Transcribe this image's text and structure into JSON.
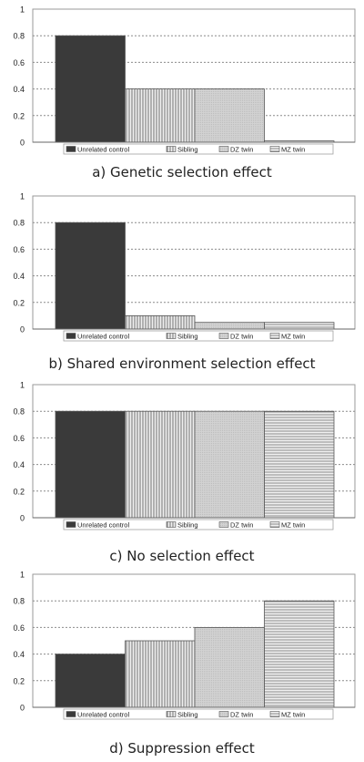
{
  "legend_labels": [
    "Unrelated control",
    "Sibling",
    "DZ twin",
    "MZ twin"
  ],
  "patterns": [
    "dark",
    "vlines",
    "light",
    "hlines"
  ],
  "chart_data": [
    {
      "type": "bar",
      "categories": [
        "Unrelated control",
        "Sibling",
        "DZ twin",
        "MZ twin"
      ],
      "values": [
        0.8,
        0.4,
        0.4,
        0.01
      ],
      "title": "a) Genetic selection effect",
      "ylim": [
        0,
        1
      ],
      "yticks": [
        "0",
        "0.2",
        "0.4",
        "0.6",
        "0.8",
        "1"
      ],
      "grid": true,
      "legend": "bottom"
    },
    {
      "type": "bar",
      "categories": [
        "Unrelated control",
        "Sibling",
        "DZ twin",
        "MZ twin"
      ],
      "values": [
        0.8,
        0.1,
        0.05,
        0.05
      ],
      "title": "b) Shared environment selection effect",
      "ylim": [
        0,
        1
      ],
      "yticks": [
        "0",
        "0.2",
        "0.4",
        "0.6",
        "0.8",
        "1"
      ],
      "grid": true,
      "legend": "bottom"
    },
    {
      "type": "bar",
      "categories": [
        "Unrelated control",
        "Sibling",
        "DZ twin",
        "MZ twin"
      ],
      "values": [
        0.8,
        0.8,
        0.8,
        0.8
      ],
      "title": "c) No selection effect",
      "ylim": [
        0,
        1
      ],
      "yticks": [
        "0",
        "0.2",
        "0.4",
        "0.6",
        "0.8",
        "1"
      ],
      "grid": true,
      "legend": "bottom"
    },
    {
      "type": "bar",
      "categories": [
        "Unrelated control",
        "Sibling",
        "DZ twin",
        "MZ twin"
      ],
      "values": [
        0.4,
        0.5,
        0.6,
        0.8
      ],
      "title": "d) Suppression effect",
      "ylim": [
        0,
        1
      ],
      "yticks": [
        "0",
        "0.2",
        "0.4",
        "0.6",
        "0.8",
        "1"
      ],
      "grid": true,
      "legend": "bottom"
    }
  ]
}
